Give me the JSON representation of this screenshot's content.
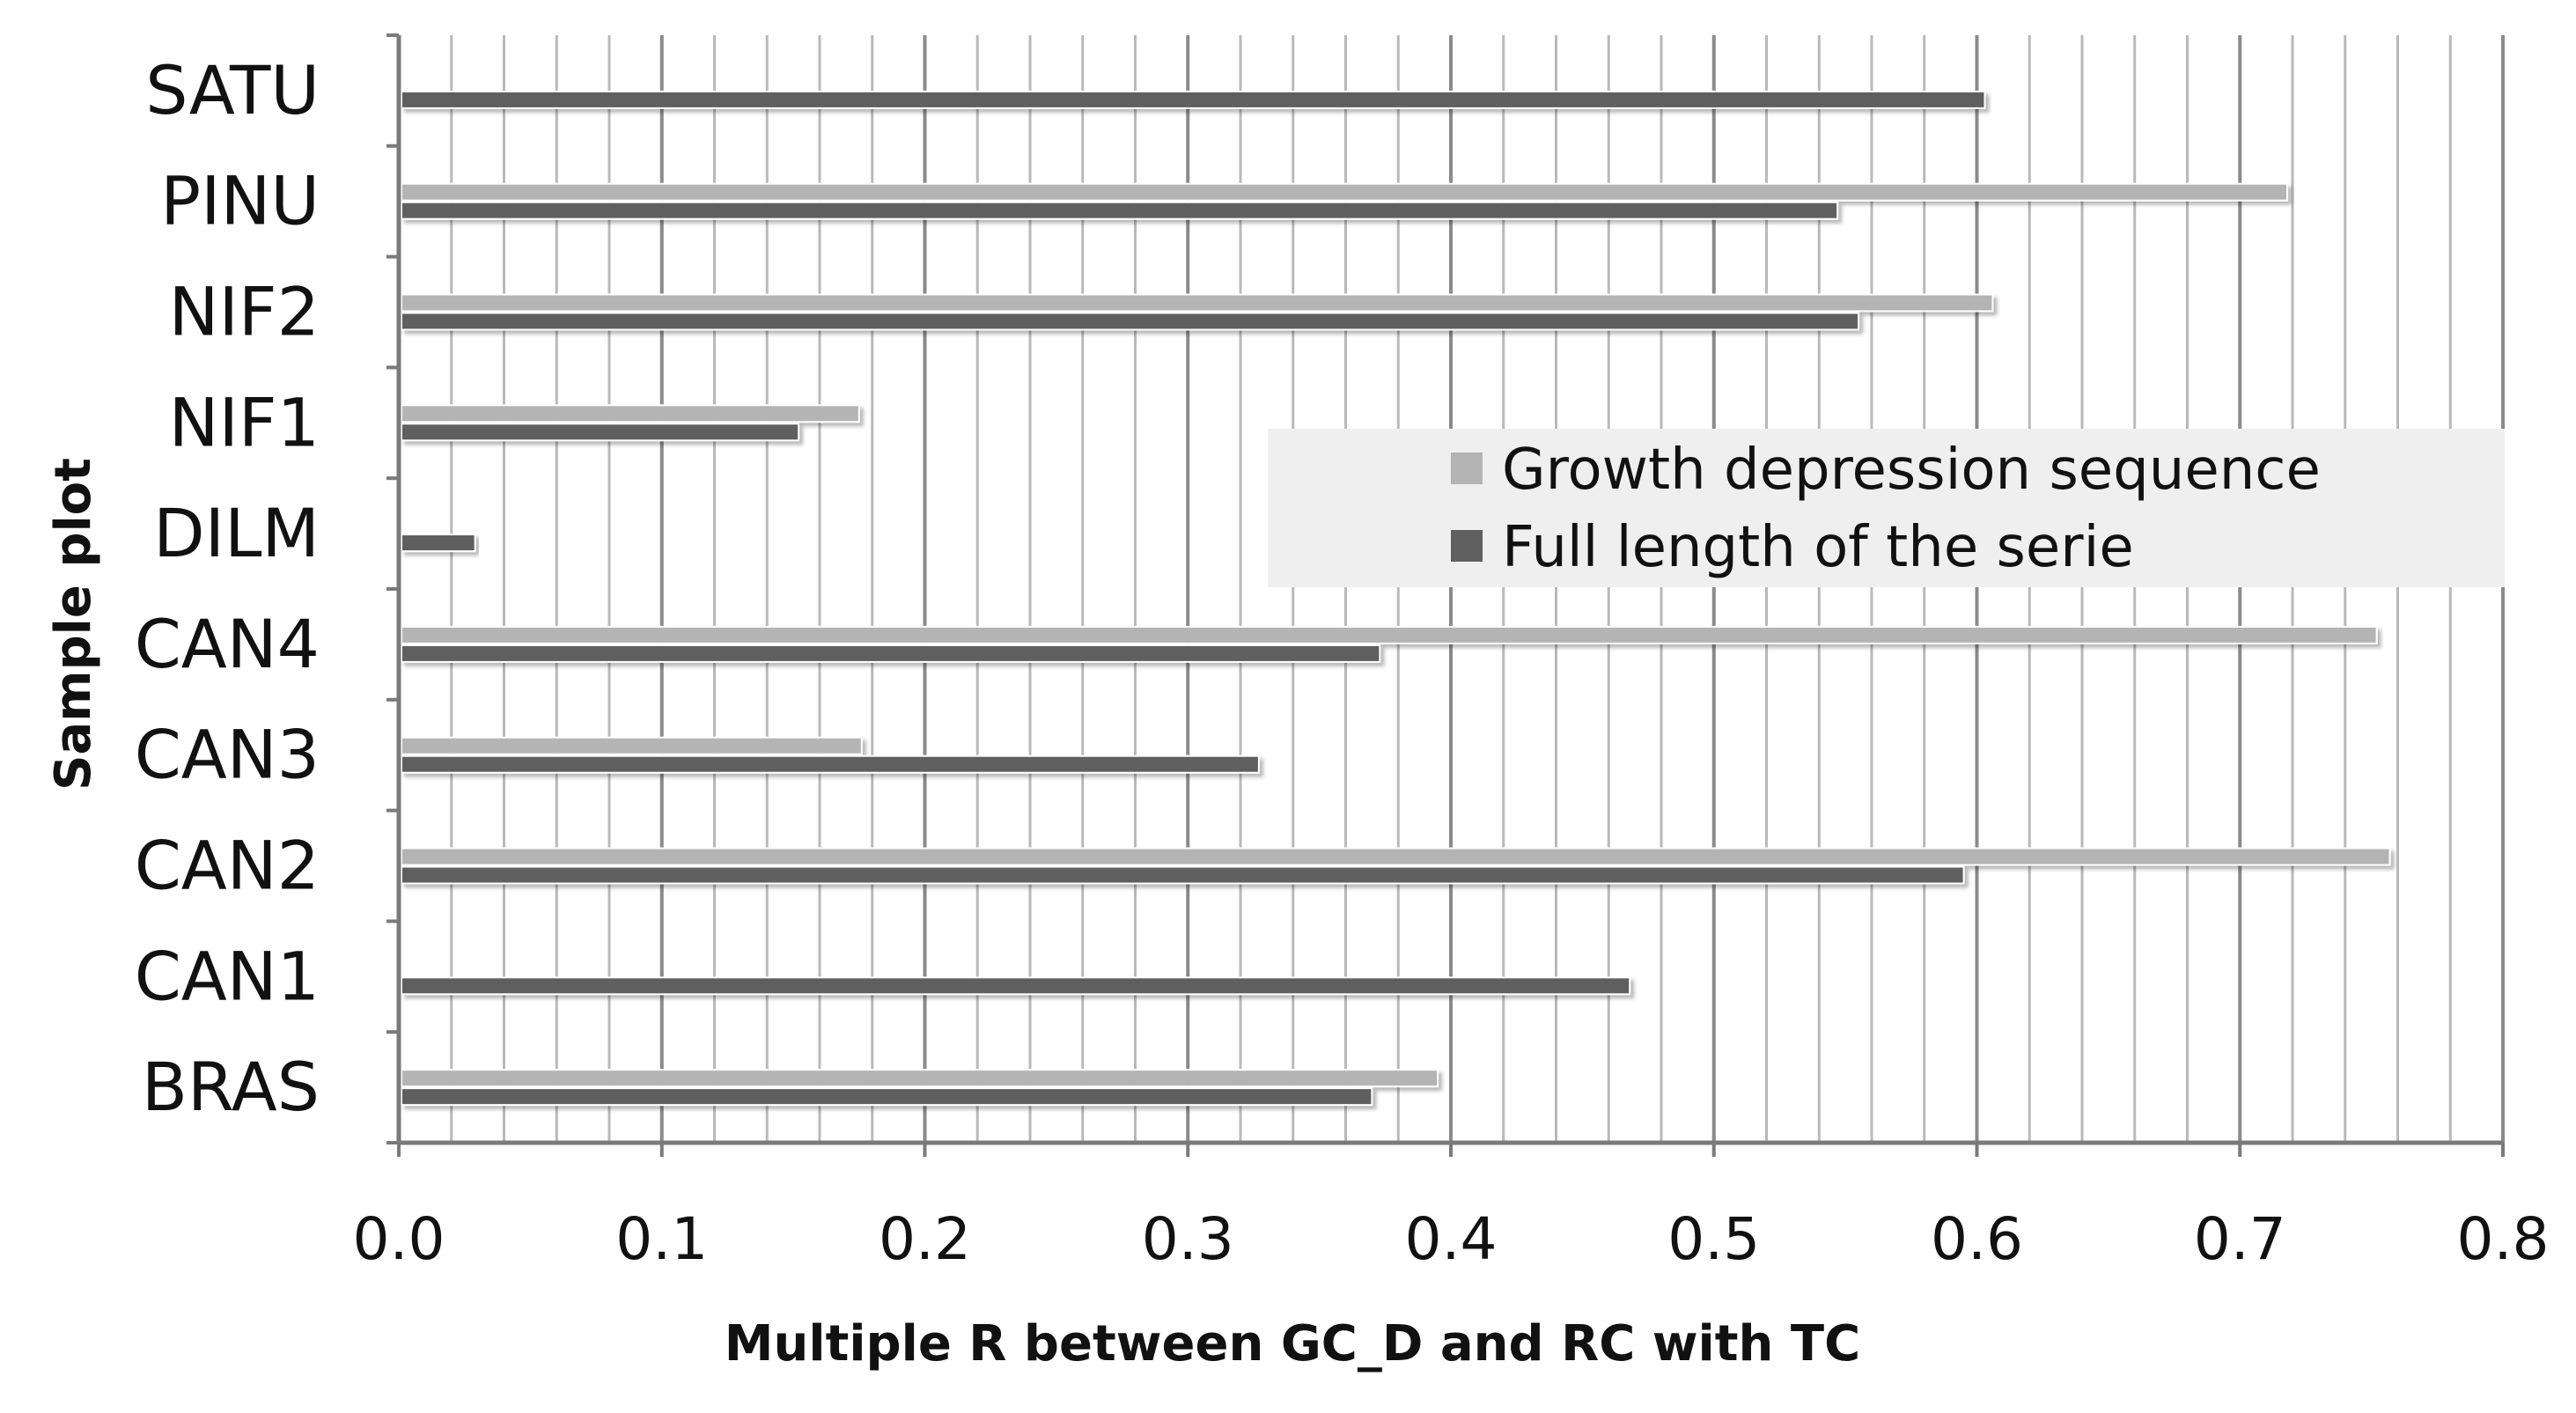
{
  "chart_data": {
    "type": "bar",
    "orientation": "horizontal",
    "title": "",
    "xlabel": "Multiple R between GC_D and RC with TC",
    "ylabel": "Sample plot",
    "xlim": [
      0,
      0.8
    ],
    "x_ticks": [
      "0.0",
      "0.1",
      "0.2",
      "0.3",
      "0.4",
      "0.5",
      "0.6",
      "0.7",
      "0.8"
    ],
    "x_tick_values": [
      0,
      0.1,
      0.2,
      0.3,
      0.4,
      0.5,
      0.6,
      0.7,
      0.8
    ],
    "minor_gridlines": true,
    "minor_grid_step": 0.02,
    "categories": [
      "BRAS",
      "CAN1",
      "CAN2",
      "CAN3",
      "CAN4",
      "DILM",
      "NIF1",
      "NIF2",
      "PINU",
      "SATU"
    ],
    "series": [
      {
        "name": "Growth depression sequence",
        "color": "#b4b4b4",
        "values": [
          0.395,
          null,
          0.757,
          0.176,
          0.752,
          null,
          0.175,
          0.606,
          0.718,
          null
        ]
      },
      {
        "name": "Full length of the serie",
        "color": "#5f5f5f",
        "values": [
          0.37,
          0.468,
          0.595,
          0.327,
          0.373,
          0.029,
          0.152,
          0.555,
          0.547,
          0.603
        ]
      }
    ],
    "legend": {
      "position": "center-right",
      "background": "#efefef",
      "entries": [
        "Growth depression sequence",
        "Full length of the serie"
      ]
    }
  }
}
